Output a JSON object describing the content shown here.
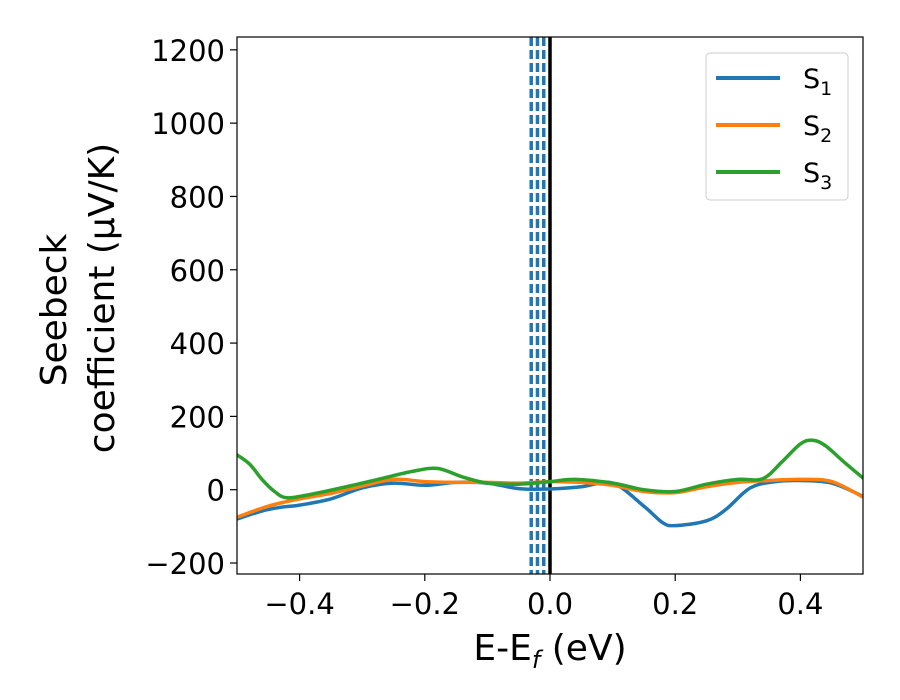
{
  "chart_data": {
    "type": "line",
    "title": "",
    "xlabel": "E-E",
    "xlabel_sub": "f",
    "xlabel_unit": " (eV)",
    "ylabel_line1": "Seebeck",
    "ylabel_line2": "coefficient  (μV/K)",
    "xlim": [
      -0.5,
      0.5
    ],
    "ylim": [
      -230,
      1235
    ],
    "xticks": [
      -0.4,
      -0.2,
      0.0,
      0.2,
      0.4
    ],
    "xtick_labels": [
      "−0.4",
      "−0.2",
      "0.0",
      "0.2",
      "0.4"
    ],
    "yticks": [
      -200,
      0,
      200,
      400,
      600,
      800,
      1000,
      1200
    ],
    "ytick_labels": [
      "−200",
      "0",
      "200",
      "400",
      "600",
      "800",
      "1000",
      "1200"
    ],
    "legend_position": "top-right",
    "fermi_level_line": {
      "x": 0.0,
      "color": "#000000"
    },
    "dashed_lines": {
      "x": [
        -0.03,
        -0.02,
        -0.01
      ],
      "color": "#1f77b4"
    },
    "series": [
      {
        "name": "S",
        "subscript": "1",
        "color": "#1f77b4",
        "x": [
          -0.5,
          -0.46,
          -0.43,
          -0.4,
          -0.35,
          -0.3,
          -0.25,
          -0.2,
          -0.15,
          -0.1,
          -0.05,
          0.0,
          0.05,
          0.1,
          0.15,
          0.18,
          0.2,
          0.25,
          0.28,
          0.32,
          0.36,
          0.4,
          0.45,
          0.5
        ],
        "y": [
          -80,
          -58,
          -48,
          -42,
          -25,
          5,
          18,
          12,
          20,
          18,
          3,
          2,
          8,
          18,
          -45,
          -90,
          -98,
          -85,
          -55,
          5,
          22,
          25,
          18,
          -18
        ]
      },
      {
        "name": "S",
        "subscript": "2",
        "color": "#ff7f0e",
        "x": [
          -0.5,
          -0.45,
          -0.4,
          -0.35,
          -0.3,
          -0.25,
          -0.2,
          -0.15,
          -0.1,
          -0.05,
          0.0,
          0.05,
          0.1,
          0.15,
          0.2,
          0.25,
          0.3,
          0.35,
          0.4,
          0.45,
          0.5
        ],
        "y": [
          -75,
          -45,
          -25,
          -10,
          10,
          28,
          22,
          20,
          20,
          18,
          22,
          20,
          12,
          -5,
          -8,
          8,
          20,
          25,
          28,
          22,
          -20
        ]
      },
      {
        "name": "S",
        "subscript": "3",
        "color": "#2ca02c",
        "x": [
          -0.5,
          -0.48,
          -0.46,
          -0.44,
          -0.42,
          -0.38,
          -0.32,
          -0.27,
          -0.22,
          -0.18,
          -0.14,
          -0.1,
          -0.05,
          0.0,
          0.04,
          0.1,
          0.15,
          0.2,
          0.25,
          0.3,
          0.34,
          0.37,
          0.4,
          0.42,
          0.44,
          0.47,
          0.5
        ],
        "y": [
          95,
          70,
          28,
          -5,
          -22,
          -12,
          10,
          30,
          50,
          58,
          35,
          18,
          15,
          22,
          28,
          18,
          0,
          -5,
          15,
          28,
          30,
          75,
          125,
          135,
          120,
          75,
          32
        ]
      }
    ]
  }
}
